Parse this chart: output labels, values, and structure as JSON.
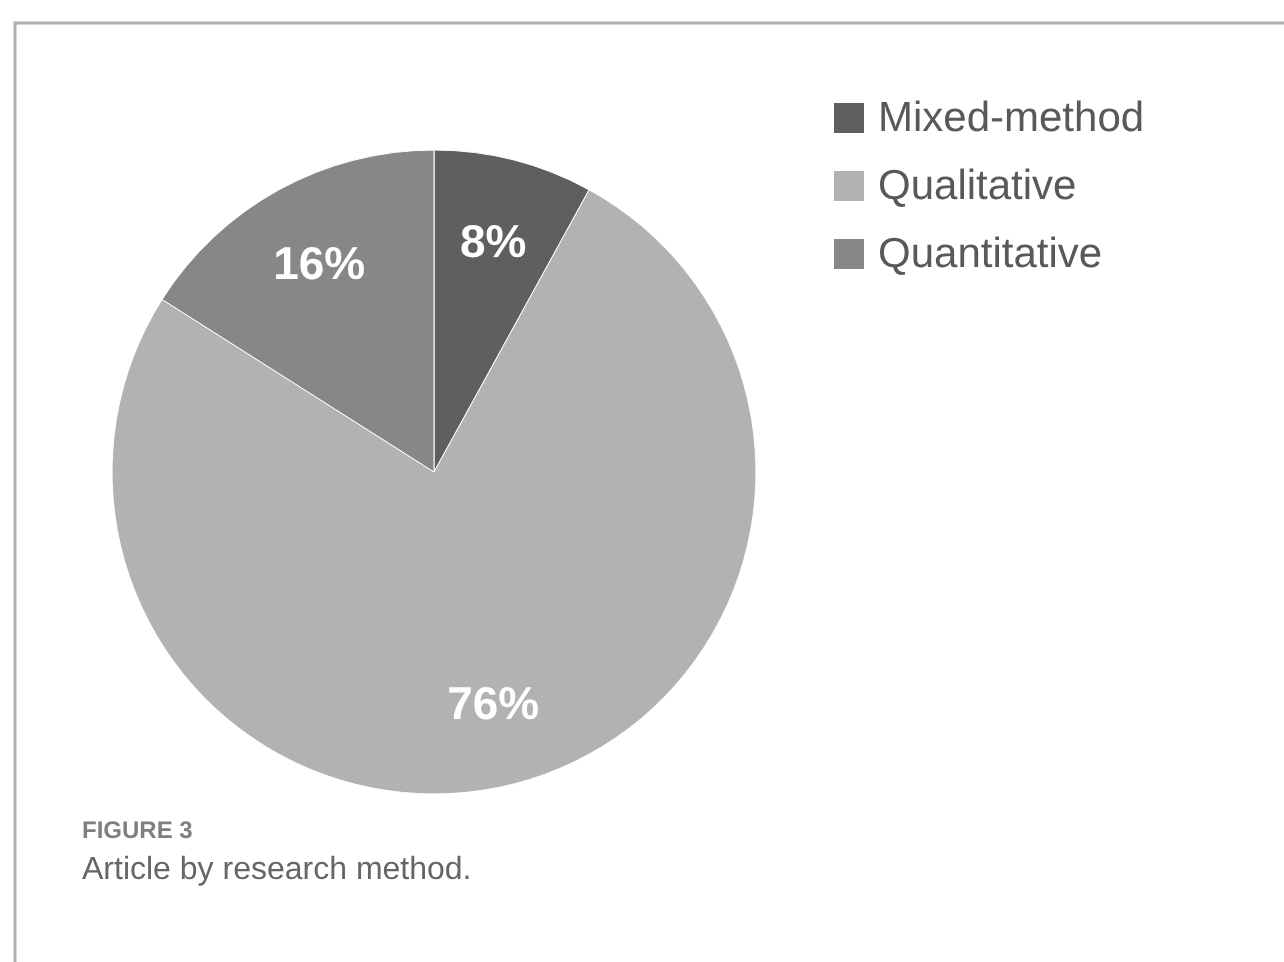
{
  "chart_data": {
    "type": "pie",
    "categories": [
      "Mixed-method",
      "Qualitative",
      "Quantitative"
    ],
    "values": [
      8,
      76,
      16
    ],
    "colors": [
      "#5f5f5f",
      "#b2b2b2",
      "#878787"
    ],
    "value_labels": [
      "8%",
      "76%",
      "16%"
    ],
    "legend": "top right",
    "annotations": [
      "FIGURE 3",
      "Article by research method."
    ]
  }
}
